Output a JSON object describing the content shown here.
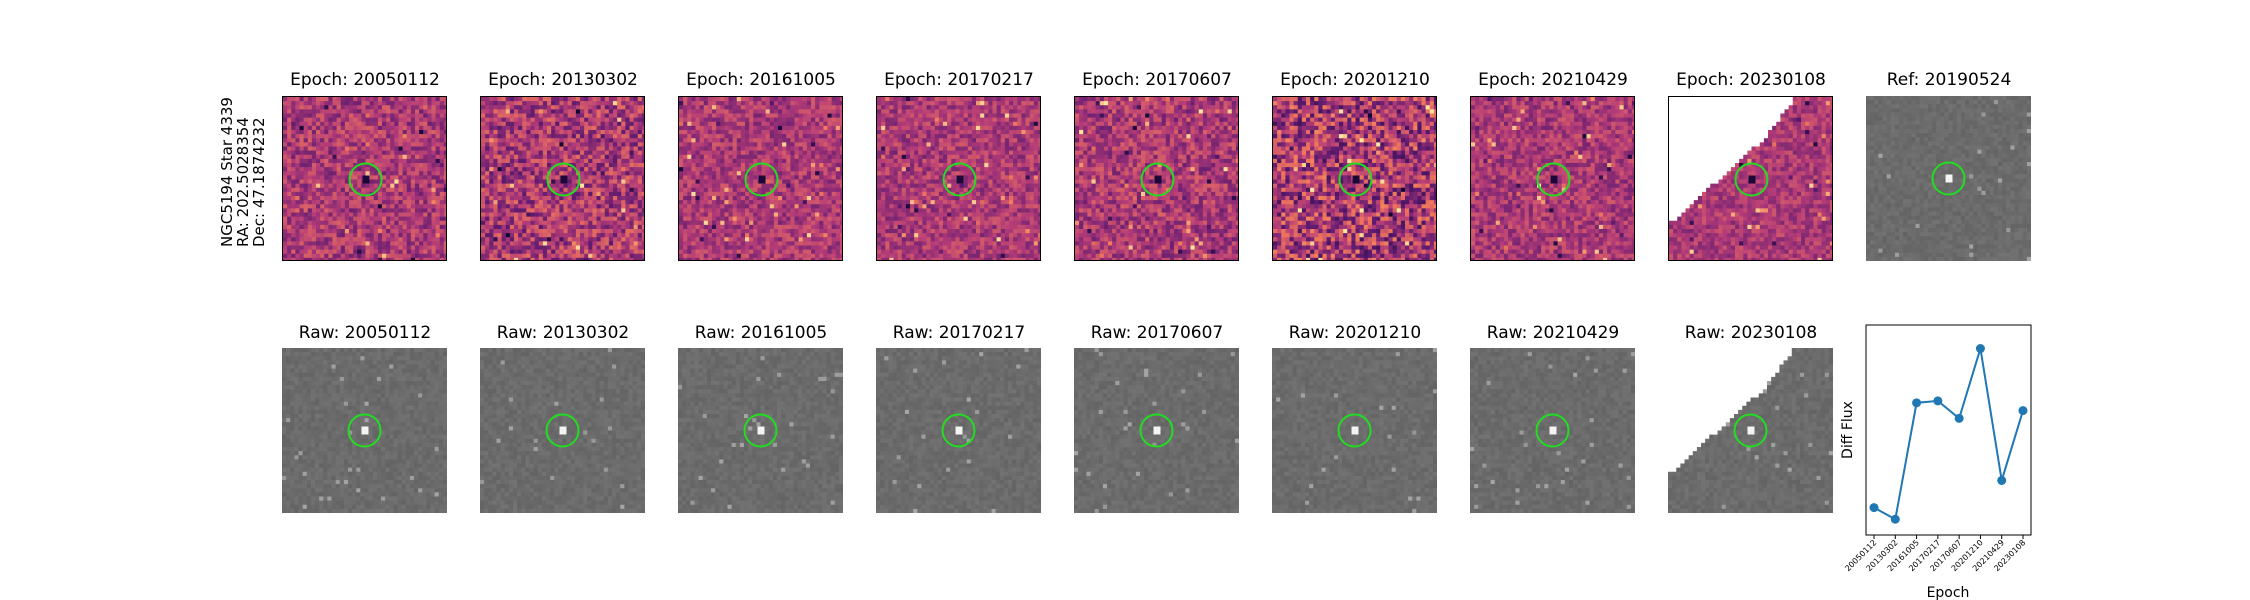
{
  "target": {
    "name": "NGC5194 Star 4339",
    "ra": "RA: 202.5028354",
    "dec": "Dec: 47.1874232"
  },
  "epoch_titles": [
    "Epoch: 20050112",
    "Epoch: 20130302",
    "Epoch: 20161005",
    "Epoch: 20170217",
    "Epoch: 20170607",
    "Epoch: 20201210",
    "Epoch: 20210429",
    "Epoch: 20230108"
  ],
  "ref_title": "Ref: 20190524",
  "raw_titles": [
    "Raw: 20050112",
    "Raw: 20130302",
    "Raw: 20161005",
    "Raw: 20170217",
    "Raw: 20170607",
    "Raw: 20201210",
    "Raw: 20210429",
    "Raw: 20230108"
  ],
  "colors": {
    "circle": "#22dd22",
    "diff_bg": "#b8467a",
    "raw_bg": "#7a7a7a",
    "line": "#1f77b4"
  },
  "chart_data": {
    "type": "line",
    "x": [
      "20050112",
      "20130302",
      "20161005",
      "20170217",
      "20170607",
      "20201210",
      "20210429",
      "20230108"
    ],
    "values": [
      0.1,
      0.04,
      0.64,
      0.65,
      0.56,
      0.92,
      0.24,
      0.6
    ],
    "xlabel": "Epoch",
    "ylabel": "Diff Flux",
    "ylim": [
      0,
      1
    ]
  }
}
